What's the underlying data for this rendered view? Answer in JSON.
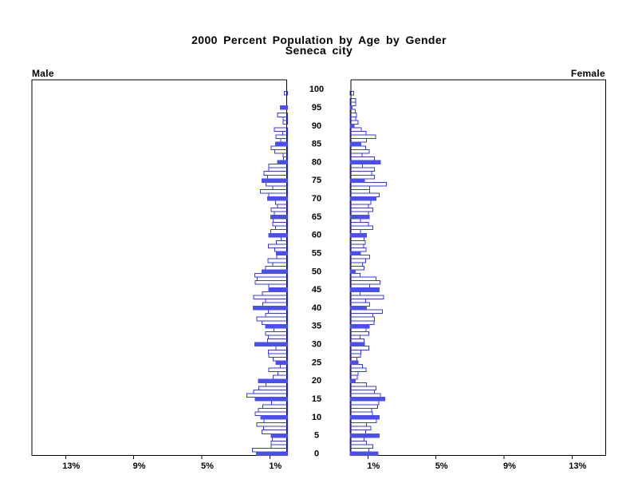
{
  "title": {
    "line1": "2000 Percent Population by Age by Gender",
    "line2": "Seneca city"
  },
  "panel_labels": {
    "left": "Male",
    "right": "Female"
  },
  "chart_data": {
    "type": "bar",
    "subtype": "population-pyramid",
    "title": "2000 Percent Population by Age by Gender",
    "subtitle": "Seneca city",
    "units": "percent of total population",
    "orientation": "horizontal back-to-back",
    "age_min": 0,
    "age_max": 100,
    "age_axis_tick_labels": [
      "0",
      "5",
      "10",
      "15",
      "20",
      "25",
      "30",
      "35",
      "40",
      "45",
      "50",
      "55",
      "60",
      "65",
      "70",
      "75",
      "80",
      "85",
      "90",
      "95",
      "100"
    ],
    "x_tick_percent": [
      1,
      5,
      9,
      13
    ],
    "x_tick_labels": [
      "1%",
      "5%",
      "9%",
      "13%"
    ],
    "xlim": [
      0,
      15
    ],
    "grid": false,
    "legend": "none",
    "highlight_rule": "bars for ages divisible by 5 are solid blue; other ages are white with blue outline",
    "series": [
      {
        "name": "Male",
        "side": "left",
        "values": [
          1.78,
          2.02,
          0.91,
          0.91,
          0.84,
          0.92,
          1.45,
          1.36,
          1.77,
          1.33,
          1.53,
          1.86,
          1.66,
          1.42,
          0.9,
          1.85,
          2.36,
          1.95,
          1.65,
          1.22,
          1.67,
          0.81,
          0.52,
          1.05,
          0.38,
          0.63,
          0.8,
          1.05,
          1.08,
          0.64,
          1.87,
          1.14,
          1.08,
          1.24,
          0.75,
          1.25,
          1.45,
          1.77,
          1.24,
          1.08,
          1.97,
          1.42,
          1.24,
          1.96,
          1.43,
          1.05,
          1.05,
          1.86,
          1.74,
          1.87,
          1.45,
          1.24,
          0.82,
          1.1,
          0.6,
          0.61,
          0.71,
          1.08,
          0.62,
          0.33,
          1.05,
          0.95,
          0.66,
          0.82,
          0.8,
          0.94,
          0.74,
          0.91,
          0.55,
          0.66,
          1.12,
          1.05,
          1.55,
          0.82,
          1.22,
          1.46,
          1.14,
          1.34,
          1.05,
          1.07,
          0.55,
          0.19,
          0.21,
          0.71,
          0.93,
          0.65,
          0.36,
          0.63,
          0.23,
          0.73,
          0.0,
          0.22,
          0.21,
          0.55,
          0.0,
          0.38,
          0.0,
          0.0,
          0.0,
          0.14,
          0.0
        ]
      },
      {
        "name": "Female",
        "side": "right",
        "values": [
          1.59,
          1.05,
          1.3,
          0.92,
          0.78,
          1.67,
          0.86,
          1.18,
          0.92,
          1.49,
          1.67,
          1.26,
          1.23,
          1.58,
          1.65,
          2.0,
          1.73,
          1.39,
          1.48,
          0.92,
          0.26,
          0.38,
          0.41,
          0.88,
          0.67,
          0.41,
          0.35,
          0.56,
          0.59,
          1.05,
          0.79,
          0.77,
          0.54,
          1.05,
          0.89,
          1.08,
          1.36,
          1.38,
          1.3,
          1.86,
          0.92,
          1.1,
          0.87,
          1.92,
          0.54,
          1.67,
          1.1,
          1.71,
          1.48,
          0.54,
          0.25,
          0.77,
          0.68,
          0.86,
          1.1,
          0.57,
          0.88,
          0.76,
          0.84,
          0.77,
          0.92,
          0.57,
          1.29,
          1.04,
          0.57,
          1.07,
          1.04,
          1.29,
          1.04,
          1.17,
          1.48,
          1.67,
          1.1,
          1.1,
          2.09,
          0.79,
          1.38,
          1.21,
          1.38,
          0.67,
          1.73,
          1.38,
          0.66,
          1.08,
          0.86,
          0.59,
          0.92,
          1.46,
          0.88,
          0.6,
          0.18,
          0.41,
          0.28,
          0.32,
          0.25,
          0.08,
          0.28,
          0.28,
          0.0,
          0.16,
          0.0
        ]
      }
    ]
  },
  "colors": {
    "bar_outline": "#3538e9",
    "bar_fill_plain": "#ffffff",
    "bar_fill_highlight": "#4b4ef1",
    "axis_line": "#000000",
    "text": "#000000",
    "background": "#ffffff"
  }
}
